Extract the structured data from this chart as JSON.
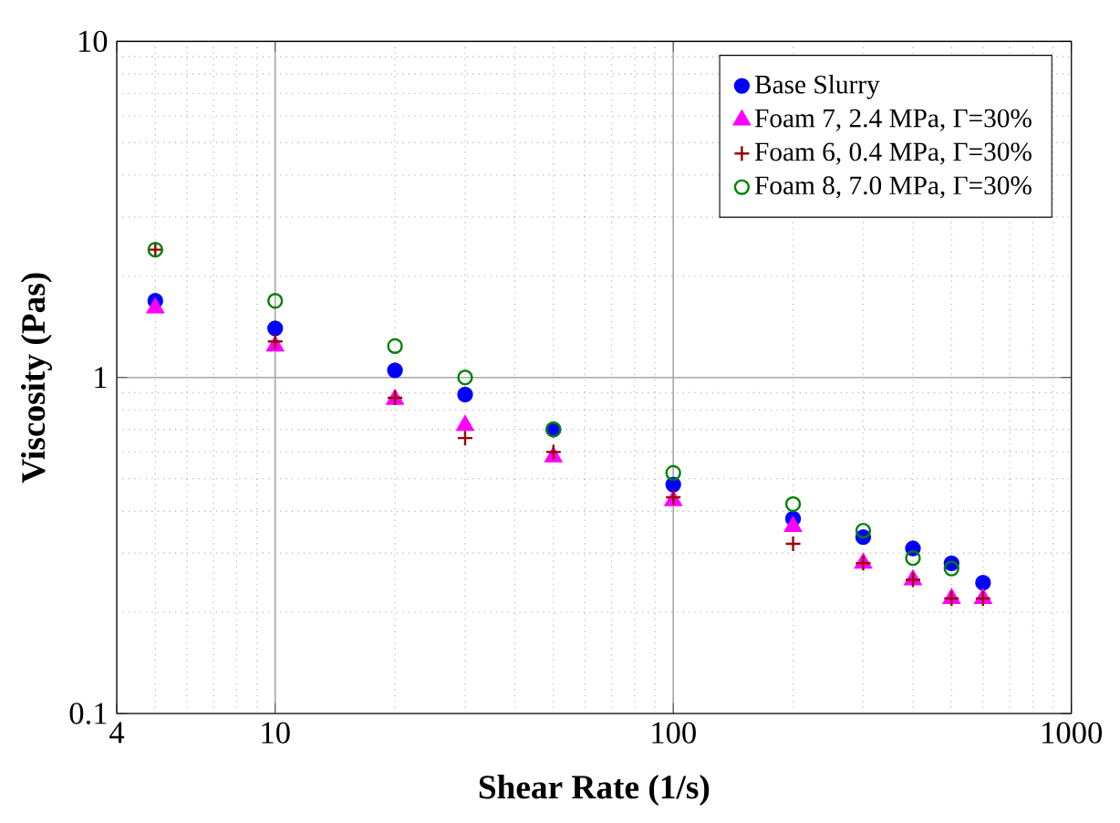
{
  "chart_data": {
    "type": "scatter",
    "xlabel": "Shear Rate (1/s)",
    "ylabel": "Viscosity (Pas)",
    "log": "xy",
    "grid": true,
    "legend": "top right",
    "xlim": [
      4,
      1000
    ],
    "ylim": [
      0.1,
      10
    ],
    "xticks": [
      4,
      10,
      100,
      1000
    ],
    "yticks": [
      0.1,
      1,
      10
    ],
    "x": [
      5,
      10,
      20,
      30,
      50,
      100,
      200,
      300,
      400,
      500,
      600
    ],
    "series": [
      {
        "name": "Base Slurry",
        "color": "#0000ff",
        "marker": "circle",
        "values": [
          1.69,
          1.4,
          1.05,
          0.89,
          0.7,
          0.48,
          0.38,
          0.335,
          0.31,
          0.28,
          0.245
        ]
      },
      {
        "name": "Foam 7, 2.4 MPa, Γ=30%",
        "color": "#ff00ff",
        "marker": "triangle",
        "values": [
          1.61,
          1.24,
          0.86,
          0.72,
          0.58,
          0.43,
          0.36,
          0.28,
          0.25,
          0.22,
          0.22
        ]
      },
      {
        "name": "Foam 6, 0.4 MPa, Γ=30%",
        "color": "#990000",
        "marker": "cross",
        "values": [
          2.4,
          1.28,
          0.87,
          0.66,
          0.6,
          0.44,
          0.32,
          0.28,
          0.25,
          0.22,
          0.22
        ]
      },
      {
        "name": "Foam 8, 7.0 MPa, Γ=30%",
        "color": "#008000",
        "marker": "circle_open",
        "values": [
          2.4,
          1.69,
          1.24,
          1.0,
          0.7,
          0.52,
          0.42,
          0.35,
          0.29,
          0.27,
          null
        ]
      }
    ]
  }
}
